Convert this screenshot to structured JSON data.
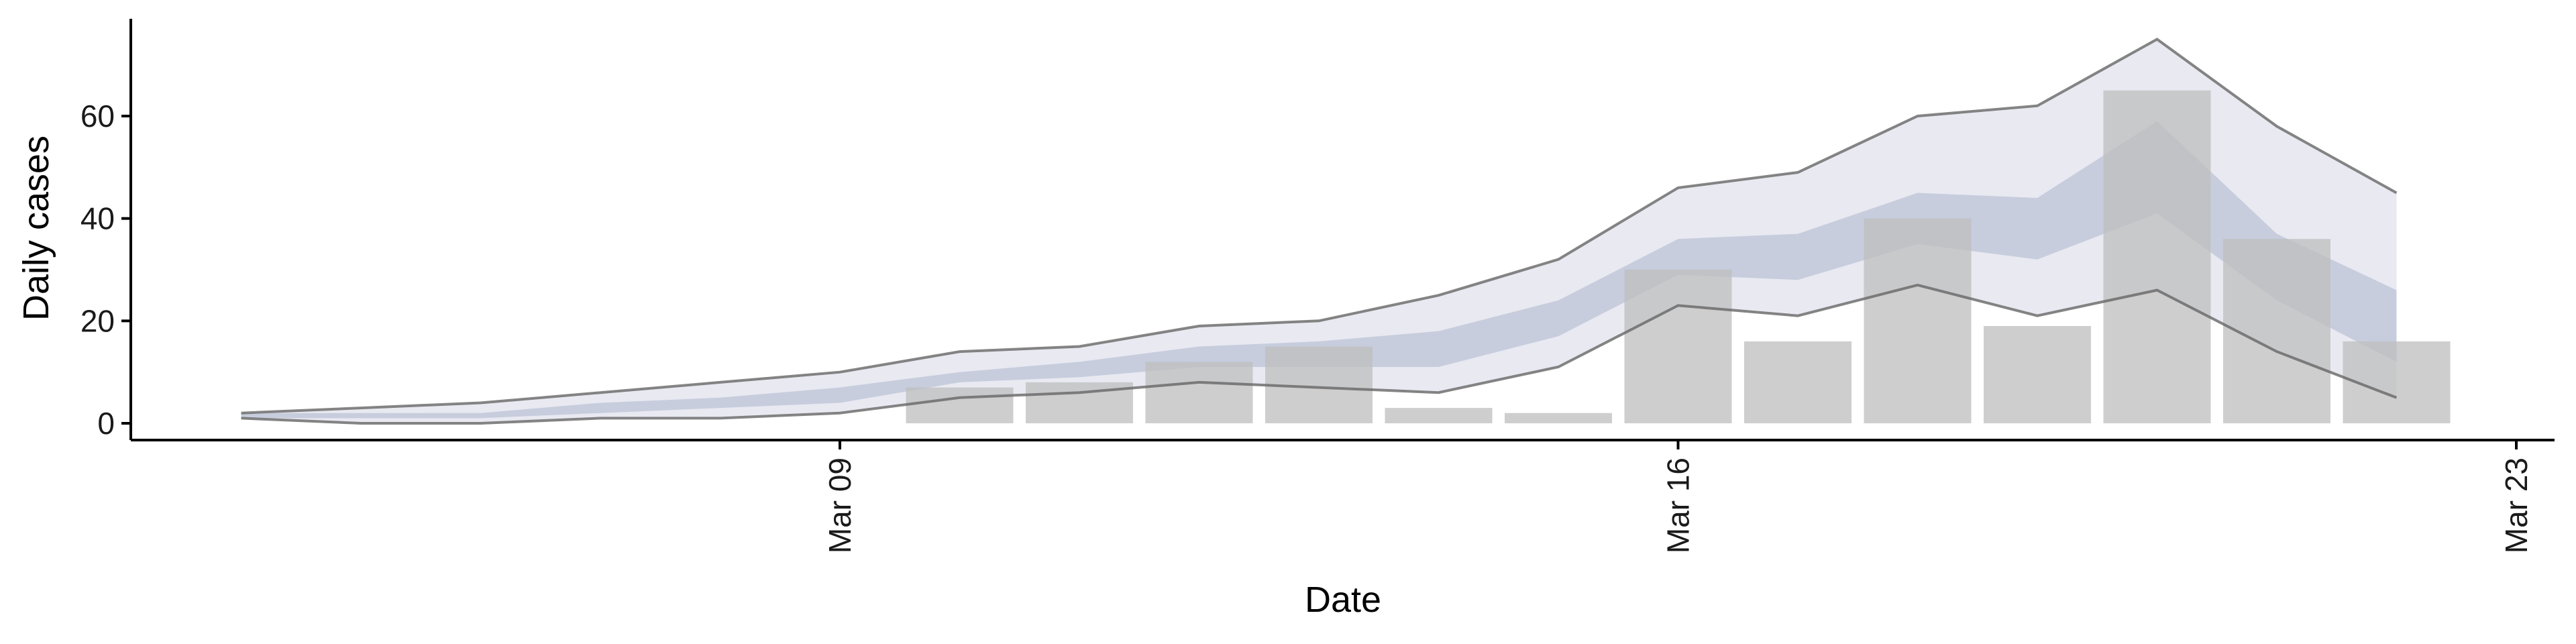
{
  "chart_data": {
    "type": "bar",
    "xlabel": "Date",
    "ylabel": "Daily cases",
    "ylim": [
      -3,
      79
    ],
    "xlim": [
      "2020-03-03",
      "2020-03-23"
    ],
    "x_ticks": [
      {
        "date": "2020-03-09",
        "label": "Mar 09"
      },
      {
        "date": "2020-03-16",
        "label": "Mar 16"
      },
      {
        "date": "2020-03-23",
        "label": "Mar 23"
      }
    ],
    "y_ticks": [
      0,
      20,
      40,
      60
    ],
    "grid": false,
    "legend": "none",
    "bars": {
      "x": [
        "2020-03-10",
        "2020-03-11",
        "2020-03-12",
        "2020-03-13",
        "2020-03-14",
        "2020-03-15",
        "2020-03-16",
        "2020-03-17",
        "2020-03-18",
        "2020-03-19",
        "2020-03-20",
        "2020-03-21",
        "2020-03-22"
      ],
      "values": [
        7,
        8,
        12,
        15,
        3,
        2,
        30,
        16,
        40,
        19,
        65,
        36,
        16
      ],
      "color": "#bdbdbd"
    },
    "bands": {
      "x": [
        "2020-03-04",
        "2020-03-05",
        "2020-03-06",
        "2020-03-07",
        "2020-03-08",
        "2020-03-09",
        "2020-03-10",
        "2020-03-11",
        "2020-03-12",
        "2020-03-13",
        "2020-03-14",
        "2020-03-15",
        "2020-03-16",
        "2020-03-17",
        "2020-03-18",
        "2020-03-19",
        "2020-03-20",
        "2020-03-21",
        "2020-03-22"
      ],
      "outer_upper": [
        2,
        3,
        4,
        6,
        8,
        10,
        14,
        15,
        19,
        20,
        25,
        32,
        46,
        49,
        60,
        62,
        75,
        58,
        45
      ],
      "outer_lower": [
        1,
        0,
        0,
        1,
        1,
        2,
        5,
        6,
        8,
        7,
        6,
        11,
        23,
        21,
        27,
        21,
        26,
        14,
        5
      ],
      "inner_upper": [
        2,
        2,
        2,
        4,
        5,
        7,
        10,
        12,
        15,
        16,
        18,
        24,
        36,
        37,
        45,
        44,
        59,
        37,
        26
      ],
      "inner_lower": [
        1,
        1,
        1,
        2,
        3,
        4,
        8,
        9,
        11,
        11,
        11,
        17,
        29,
        28,
        35,
        32,
        41,
        24,
        12
      ],
      "outer_color": "#e2e4ee",
      "inner_color": "#bcc3d6",
      "line_color": "#666666"
    }
  }
}
